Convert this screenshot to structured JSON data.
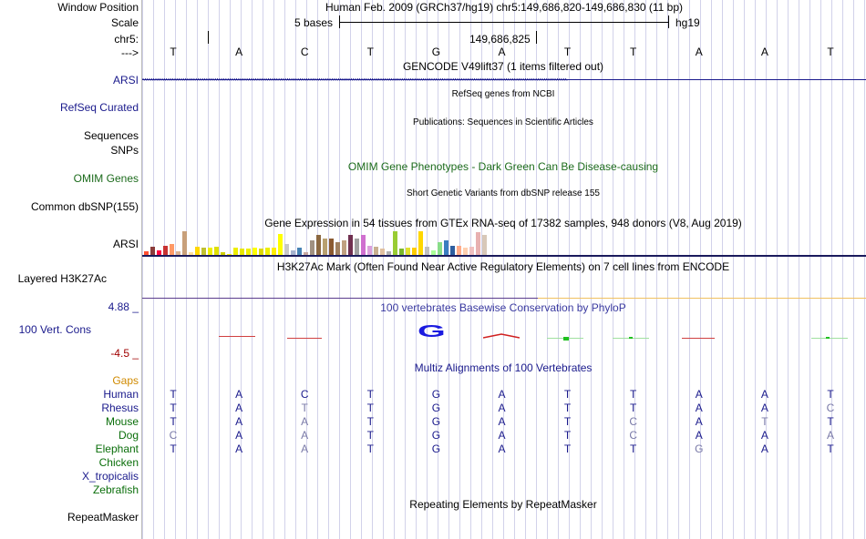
{
  "position_rows": {
    "window_position_label": "Window Position",
    "window_position_value": "Human Feb. 2009 (GRCh37/hg19)   chr5:149,686,820-149,686,830 (11 bp)",
    "scale_label": "Scale",
    "scale_text": "5 bases",
    "scale_assembly": "hg19",
    "chrom_label": "chr5:",
    "chrom_position": "149,686,825",
    "strand_label": "--->"
  },
  "reference_bases": [
    "T",
    "A",
    "C",
    "T",
    "G",
    "A",
    "T",
    "T",
    "A",
    "A",
    "T"
  ],
  "tracks": {
    "gencode_title": "GENCODE V49lift37 (1 items filtered out)",
    "gencode_label": "ARSI",
    "refseq_title": "RefSeq genes from NCBI",
    "refseq_label": "RefSeq Curated",
    "publications_title": "Publications: Sequences in Scientific Articles",
    "sequences_label": "Sequences",
    "snps_label": "SNPs",
    "omim_title": "OMIM Gene Phenotypes - Dark Green Can Be Disease-causing",
    "omim_label": "OMIM Genes",
    "dbsnp_title": "Short Genetic Variants from dbSNP release 155",
    "dbsnp_label": "Common dbSNP(155)",
    "gtex_title": "Gene Expression in 54 tissues from GTEx RNA-seq of 17382 samples, 948 donors (V8, Aug 2019)",
    "gtex_label": "ARSI",
    "h3k27ac_title": "H3K27Ac Mark (Often Found Near Active Regulatory Elements) on 7 cell lines from ENCODE",
    "h3k27ac_label": "Layered H3K27Ac",
    "phylop_title": "100 vertebrates Basewise Conservation by PhyloP",
    "phylop_label": "100 Vert. Cons",
    "phylop_max": "4.88 _",
    "phylop_min": "-4.5 _",
    "phylop_peak_base": "G",
    "multiz_title": "Multiz Alignments of 100 Vertebrates",
    "gaps_label": "Gaps",
    "repeat_title": "Repeating Elements by RepeatMasker",
    "repeat_label": "RepeatMasker"
  },
  "alignment": [
    {
      "species": "Human",
      "bases": [
        "T",
        "A",
        "C",
        "T",
        "G",
        "A",
        "T",
        "T",
        "A",
        "A",
        "T"
      ],
      "diff": [
        0,
        0,
        0,
        0,
        0,
        0,
        0,
        0,
        0,
        0,
        0
      ]
    },
    {
      "species": "Rhesus",
      "bases": [
        "T",
        "A",
        "T",
        "T",
        "G",
        "A",
        "T",
        "T",
        "A",
        "A",
        "C"
      ],
      "diff": [
        0,
        0,
        1,
        0,
        0,
        0,
        0,
        0,
        0,
        0,
        1
      ]
    },
    {
      "species": "Mouse",
      "bases": [
        "T",
        "A",
        "A",
        "T",
        "G",
        "A",
        "T",
        "C",
        "A",
        "T",
        "T"
      ],
      "diff": [
        0,
        0,
        1,
        0,
        0,
        0,
        0,
        1,
        0,
        1,
        0
      ]
    },
    {
      "species": "Dog",
      "bases": [
        "C",
        "A",
        "A",
        "T",
        "G",
        "A",
        "T",
        "C",
        "A",
        "A",
        "A"
      ],
      "diff": [
        1,
        0,
        1,
        0,
        0,
        0,
        0,
        1,
        0,
        0,
        1
      ]
    },
    {
      "species": "Elephant",
      "bases": [
        "T",
        "A",
        "A",
        "T",
        "G",
        "A",
        "T",
        "T",
        "G",
        "A",
        "T"
      ],
      "diff": [
        0,
        0,
        1,
        0,
        0,
        0,
        0,
        0,
        1,
        0,
        0
      ]
    },
    {
      "species": "Chicken",
      "bases": [],
      "diff": []
    },
    {
      "species": "X_tropicalis",
      "bases": [],
      "diff": []
    },
    {
      "species": "Zebrafish",
      "bases": [],
      "diff": []
    }
  ],
  "gtex_expression": [
    0.15,
    0.35,
    0.2,
    0.4,
    0.45,
    0.15,
    1.0,
    0.1,
    0.35,
    0.3,
    0.3,
    0.35,
    0.1,
    0.05,
    0.3,
    0.25,
    0.25,
    0.3,
    0.25,
    0.3,
    0.3,
    0.9,
    0.45,
    0.2,
    0.3,
    0.1,
    0.6,
    0.85,
    0.7,
    0.7,
    0.55,
    0.6,
    0.85,
    0.7,
    0.85,
    0.4,
    0.35,
    0.25,
    0.15,
    1.0,
    0.25,
    0.3,
    0.3,
    1.0,
    0.35,
    0.2,
    0.55,
    0.6,
    0.4,
    0.4,
    0.3,
    0.35,
    0.95,
    0.85
  ],
  "gtex_colors": [
    "#ff4f30",
    "#8b3c3c",
    "#ff0040",
    "#c83232",
    "#ff9a66",
    "#dcb493",
    "#c8a07a",
    "#ffe0a0",
    "#ffd700",
    "#c0c030",
    "#eeee00",
    "#e0e000",
    "#d0d000",
    "#f0f000",
    "#eeee00",
    "#e8e800",
    "#eeee00",
    "#ffff00",
    "#ddd800",
    "#eeee00",
    "#ffee00",
    "#ffff00",
    "#c8c8c8",
    "#a6b3cf",
    "#4682b4",
    "#c8a8a0",
    "#a09080",
    "#8b6840",
    "#b8a070",
    "#8b5a30",
    "#a08060",
    "#c0a080",
    "#703050",
    "#a0a0a0",
    "#d070d0",
    "#dca0dc",
    "#c8b090",
    "#e0c0a0",
    "#b0b0b0",
    "#99cc33",
    "#7ab82a",
    "#e0e030",
    "#ffcc00",
    "#ffd700",
    "#c0c0c0",
    "#aaff99",
    "#88dd88",
    "#3a7dc0",
    "#2e5fa0",
    "#ffaa88",
    "#ffd0b0",
    "#f0c0c0",
    "#e8b0b0",
    "#d8c8b8"
  ]
}
